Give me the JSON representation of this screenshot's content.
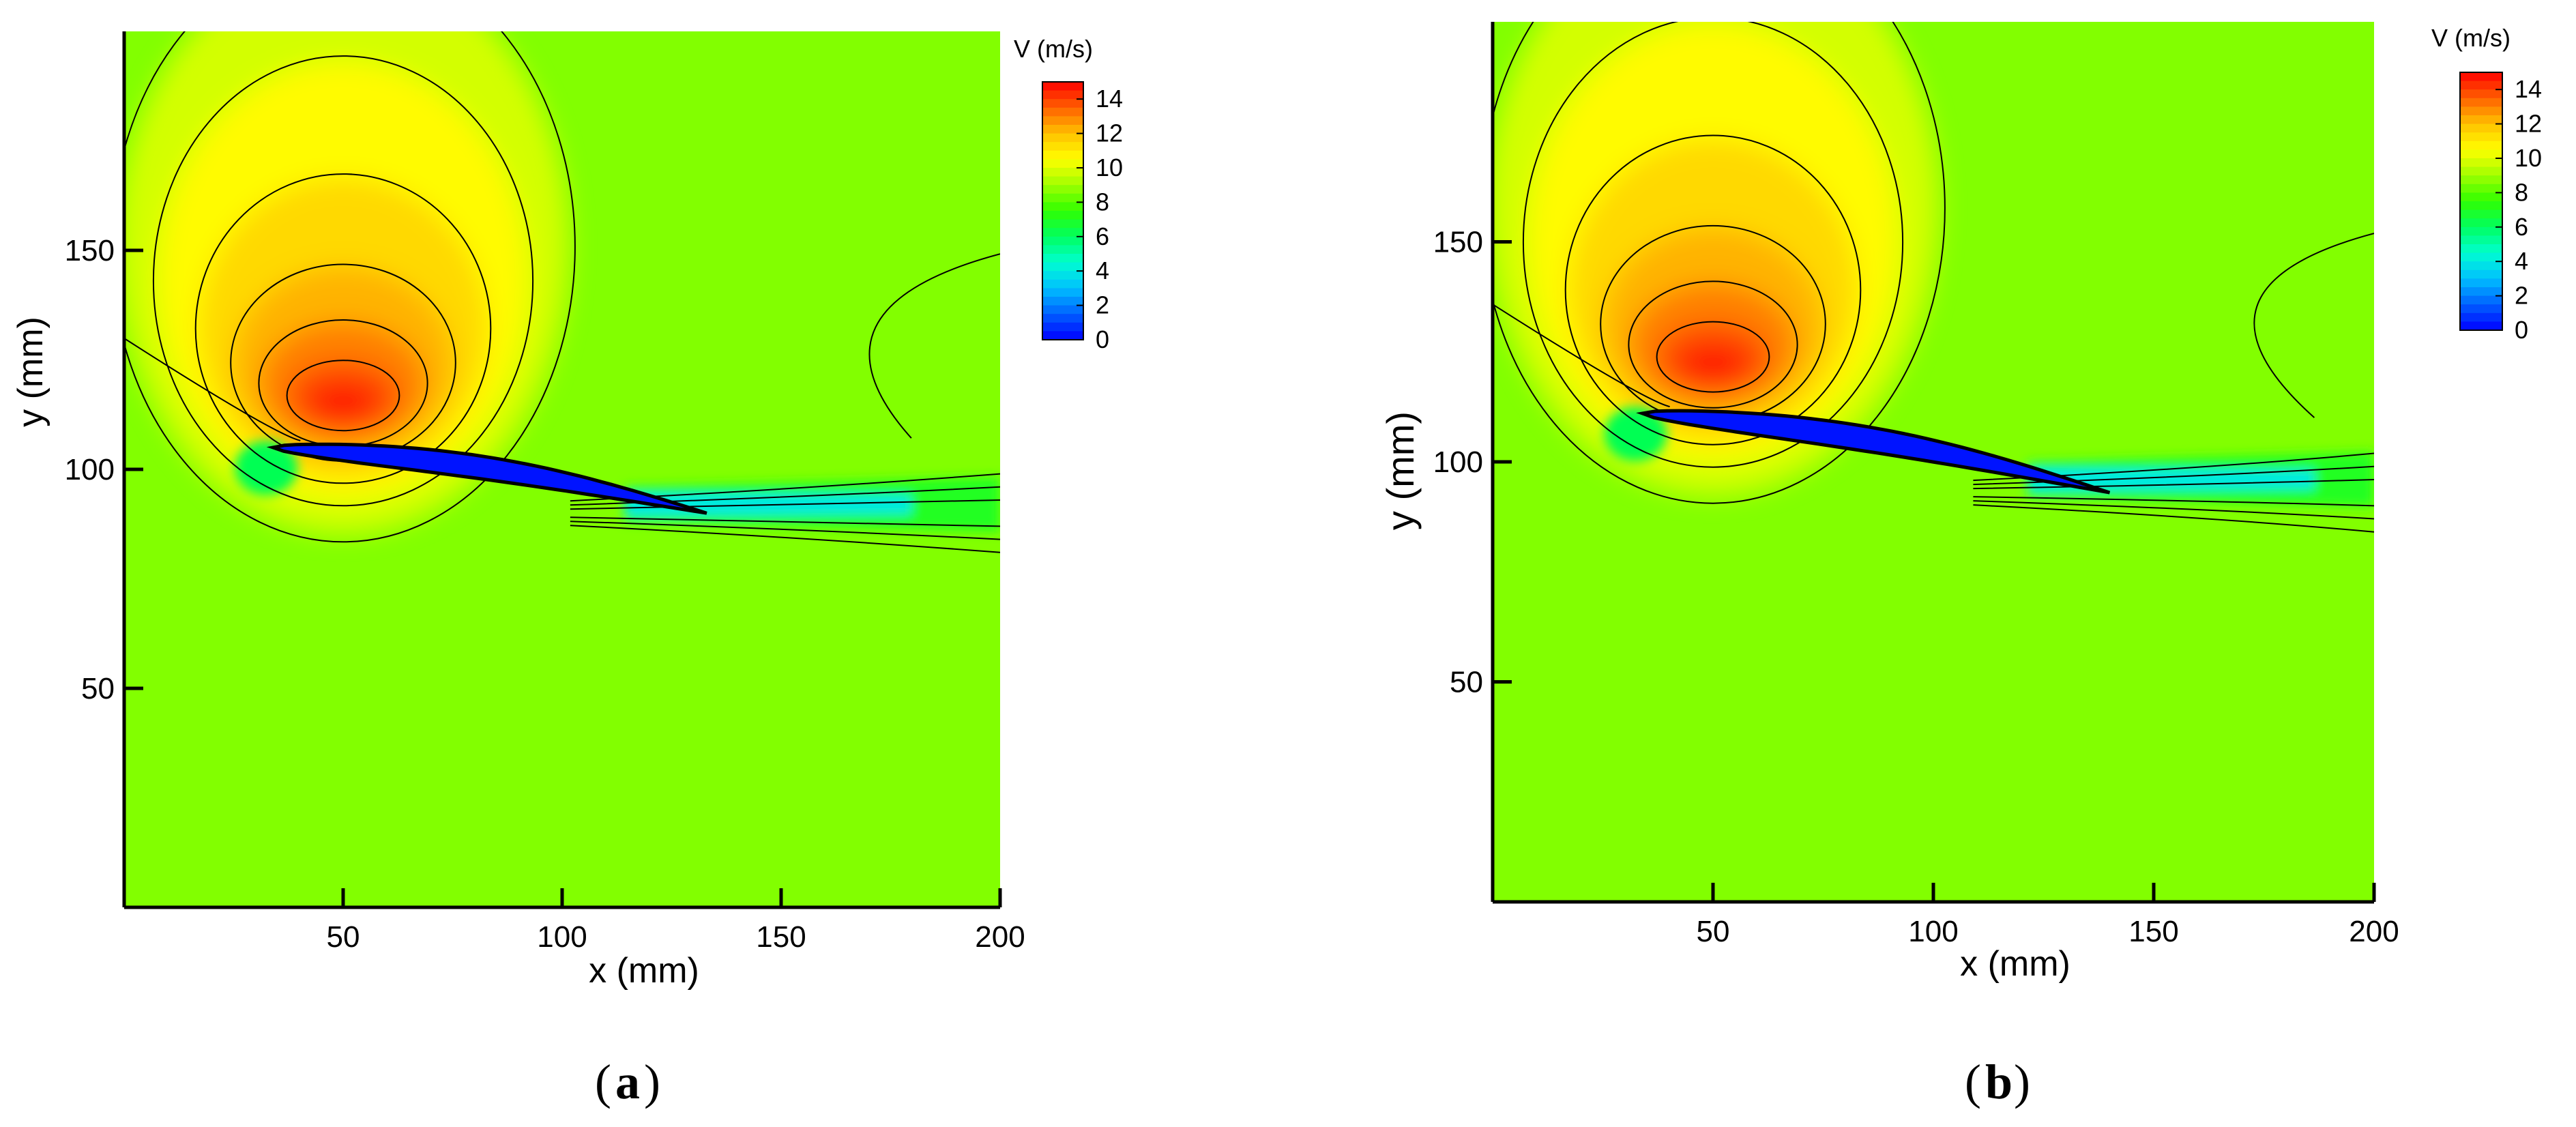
{
  "chart_data": [
    {
      "type": "heatmap",
      "panel": "a",
      "panel_label": "a",
      "xlabel": "x (mm)",
      "ylabel": "y (mm)",
      "xlim": [
        0,
        200
      ],
      "ylim": [
        0,
        200
      ],
      "xticks": [
        50,
        100,
        150,
        200
      ],
      "yticks": [
        50,
        100,
        150
      ],
      "colorbar": {
        "title": "V (m/s)",
        "min": 0,
        "max": 15,
        "ticks": [
          14,
          12,
          10,
          8,
          6,
          4,
          2,
          0
        ]
      },
      "airfoil": {
        "leading_edge": [
          34,
          105
        ],
        "trailing_edge": [
          133,
          90
        ],
        "chord_angle_deg": 8.5
      },
      "max_velocity_region": {
        "x": 50,
        "y": 115,
        "value": 14
      },
      "wake_low_velocity": {
        "x_start": 133,
        "x_end": 200,
        "y": 92
      }
    },
    {
      "type": "heatmap",
      "panel": "b",
      "panel_label": "b",
      "xlabel": "x (mm)",
      "ylabel": "y (mm)",
      "xlim": [
        0,
        200
      ],
      "ylim": [
        0,
        200
      ],
      "xticks": [
        50,
        100,
        150,
        200
      ],
      "yticks": [
        50,
        100,
        150
      ],
      "colorbar": {
        "title": "V (m/s)",
        "min": 0,
        "max": 15,
        "ticks": [
          14,
          12,
          10,
          8,
          6,
          4,
          2,
          0
        ]
      },
      "airfoil": {
        "leading_edge": [
          34,
          111
        ],
        "trailing_edge": [
          140,
          93
        ],
        "chord_angle_deg": 9.5
      },
      "max_velocity_region": {
        "x": 50,
        "y": 122,
        "value": 14
      },
      "wake_low_velocity": {
        "x_start": 140,
        "x_end": 200,
        "y": 96
      }
    }
  ]
}
